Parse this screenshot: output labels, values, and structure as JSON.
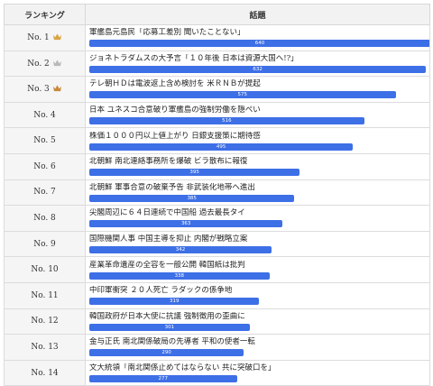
{
  "headers": {
    "rank": "ランキング",
    "topic": "話題"
  },
  "max_value": 640,
  "colors": {
    "bar": "#3d6fe6",
    "gold": "#d9a441",
    "silver": "#b9b9b9",
    "bronze": "#c98a3e"
  },
  "rows": [
    {
      "rank": "No. 1",
      "crown": "gold",
      "title": "軍艦島元島民「応募工差別 聞いたことない」",
      "value": 640
    },
    {
      "rank": "No. 2",
      "crown": "silver",
      "title": "ジョネトラダムスの大予言「１０年後 日本は資源大国へ!?」",
      "value": 632
    },
    {
      "rank": "No. 3",
      "crown": "bronze",
      "title": "テレ朝ＨＤは電波返上含め検討を 米ＲＮＢが提起",
      "value": 575
    },
    {
      "rank": "No. 4",
      "crown": "",
      "title": "日本 ユネスコ合意破り軍艦島の強制労働を隠ぺい",
      "value": 516
    },
    {
      "rank": "No. 5",
      "crown": "",
      "title": "株価１０００円以上値上がり 日銀支援策に期待感",
      "value": 495
    },
    {
      "rank": "No. 6",
      "crown": "",
      "title": "北朝鮮 南北連絡事務所を爆破 ビラ散布に報復",
      "value": 395
    },
    {
      "rank": "No. 7",
      "crown": "",
      "title": "北朝鮮 軍事合意の破棄予告 非武装化地帯へ進出",
      "value": 385
    },
    {
      "rank": "No. 8",
      "crown": "",
      "title": "尖閣周辺に６４日連続で中国船 過去最長タイ",
      "value": 363
    },
    {
      "rank": "No. 9",
      "crown": "",
      "title": "国際機関人事 中国主導を抑止 内閣が戦略立案",
      "value": 342
    },
    {
      "rank": "No. 10",
      "crown": "",
      "title": "産業革命遺産の全容を一般公開 韓国紙は批判",
      "value": 338
    },
    {
      "rank": "No. 11",
      "crown": "",
      "title": "中印軍衝突 ２０人死亡 ラダックの係争地",
      "value": 319
    },
    {
      "rank": "No. 12",
      "crown": "",
      "title": "韓国政府が日本大使に抗議 強制徴用の歪曲に",
      "value": 301
    },
    {
      "rank": "No. 13",
      "crown": "",
      "title": "金与正氏 南北関係破局の先導者 平和の使者一転",
      "value": 290
    },
    {
      "rank": "No. 14",
      "crown": "",
      "title": "文大統領「南北関係止めてはならない 共に突破口を」",
      "value": 277
    }
  ]
}
